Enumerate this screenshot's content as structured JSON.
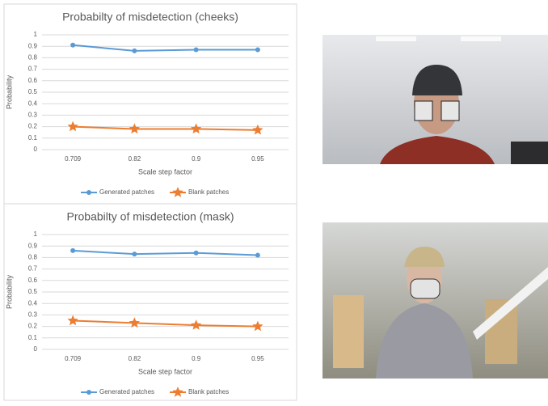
{
  "chart_data": [
    {
      "type": "line",
      "title": "Probabilty of misdetection (cheeks)",
      "y_label": "Probability",
      "x_label": "Scale step factor",
      "categories": [
        "0.709",
        "0.82",
        "0.9",
        "0.95"
      ],
      "series": [
        {
          "name": "Generated patches",
          "color": "#5b9bd5",
          "marker": "circle",
          "values": [
            0.91,
            0.86,
            0.87,
            0.87
          ]
        },
        {
          "name": "Blank patches",
          "color": "#ed7d31",
          "marker": "star",
          "values": [
            0.2,
            0.18,
            0.18,
            0.17
          ]
        }
      ],
      "ylim": [
        0,
        1
      ],
      "yticks": [
        0,
        0.1,
        0.2,
        0.3,
        0.4,
        0.5,
        0.6,
        0.7,
        0.8,
        0.9,
        1
      ],
      "grid": true,
      "legend": "bottom"
    },
    {
      "type": "line",
      "title": "Probabilty of misdetection (mask)",
      "y_label": "Probability",
      "x_label": "Scale step factor",
      "categories": [
        "0.709",
        "0.82",
        "0.9",
        "0.95"
      ],
      "series": [
        {
          "name": "Generated patches",
          "color": "#5b9bd5",
          "marker": "circle",
          "values": [
            0.86,
            0.83,
            0.84,
            0.82
          ]
        },
        {
          "name": "Blank patches",
          "color": "#ed7d31",
          "marker": "star",
          "values": [
            0.25,
            0.23,
            0.21,
            0.2
          ]
        }
      ],
      "ylim": [
        0,
        1
      ],
      "yticks": [
        0,
        0.1,
        0.2,
        0.3,
        0.4,
        0.5,
        0.6,
        0.7,
        0.8,
        0.9,
        1
      ],
      "grid": true,
      "legend": "bottom"
    }
  ]
}
